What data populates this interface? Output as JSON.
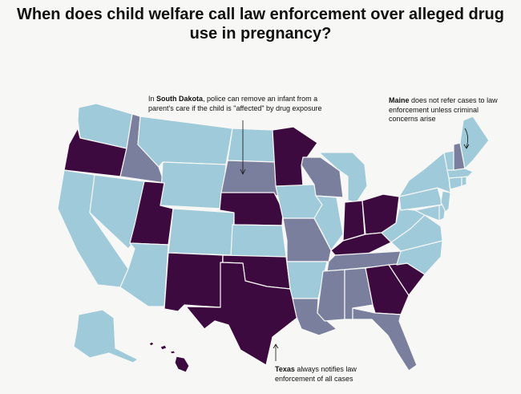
{
  "title": "When does child welfare call law enforcement over alleged drug use in pregnancy?",
  "colors": {
    "background": "#f7f7f5",
    "light_blue": "#9ecad9",
    "slate": "#7b7f9e",
    "dark_purple": "#3d0a3f"
  },
  "categories": {
    "dark_purple": [
      "Oregon",
      "Utah",
      "Nebraska",
      "Minnesota",
      "New Mexico",
      "Oklahoma",
      "Texas",
      "Indiana",
      "Ohio",
      "Kentucky",
      "Georgia",
      "South Carolina",
      "Hawaii"
    ],
    "slate": [
      "Idaho",
      "South Dakota",
      "Wisconsin",
      "Missouri",
      "Tennessee",
      "Mississippi",
      "Alabama",
      "Louisiana",
      "Florida",
      "New Hampshire"
    ],
    "light_blue": [
      "Washington",
      "California",
      "Nevada",
      "Arizona",
      "Montana",
      "Wyoming",
      "Colorado",
      "North Dakota",
      "Kansas",
      "Iowa",
      "Arkansas",
      "Illinois",
      "Michigan",
      "Maine",
      "Vermont",
      "Massachusetts",
      "Connecticut",
      "Rhode Island",
      "New York",
      "New Jersey",
      "Pennsylvania",
      "Delaware",
      "Maryland",
      "West Virginia",
      "Virginia",
      "North Carolina",
      "Alaska"
    ]
  },
  "annotations": {
    "south_dakota": {
      "bold": "South Dakota",
      "text": ", police can remove an infant from a parent's care if the child is \"affected\" by drug exposure",
      "prefix": "In "
    },
    "maine": {
      "bold": "Maine",
      "text": " does not refer cases to law enforcement unless criminal concerns arise"
    },
    "texas": {
      "bold": "Texas",
      "text": " always notifies law enforcement of all cases"
    }
  }
}
